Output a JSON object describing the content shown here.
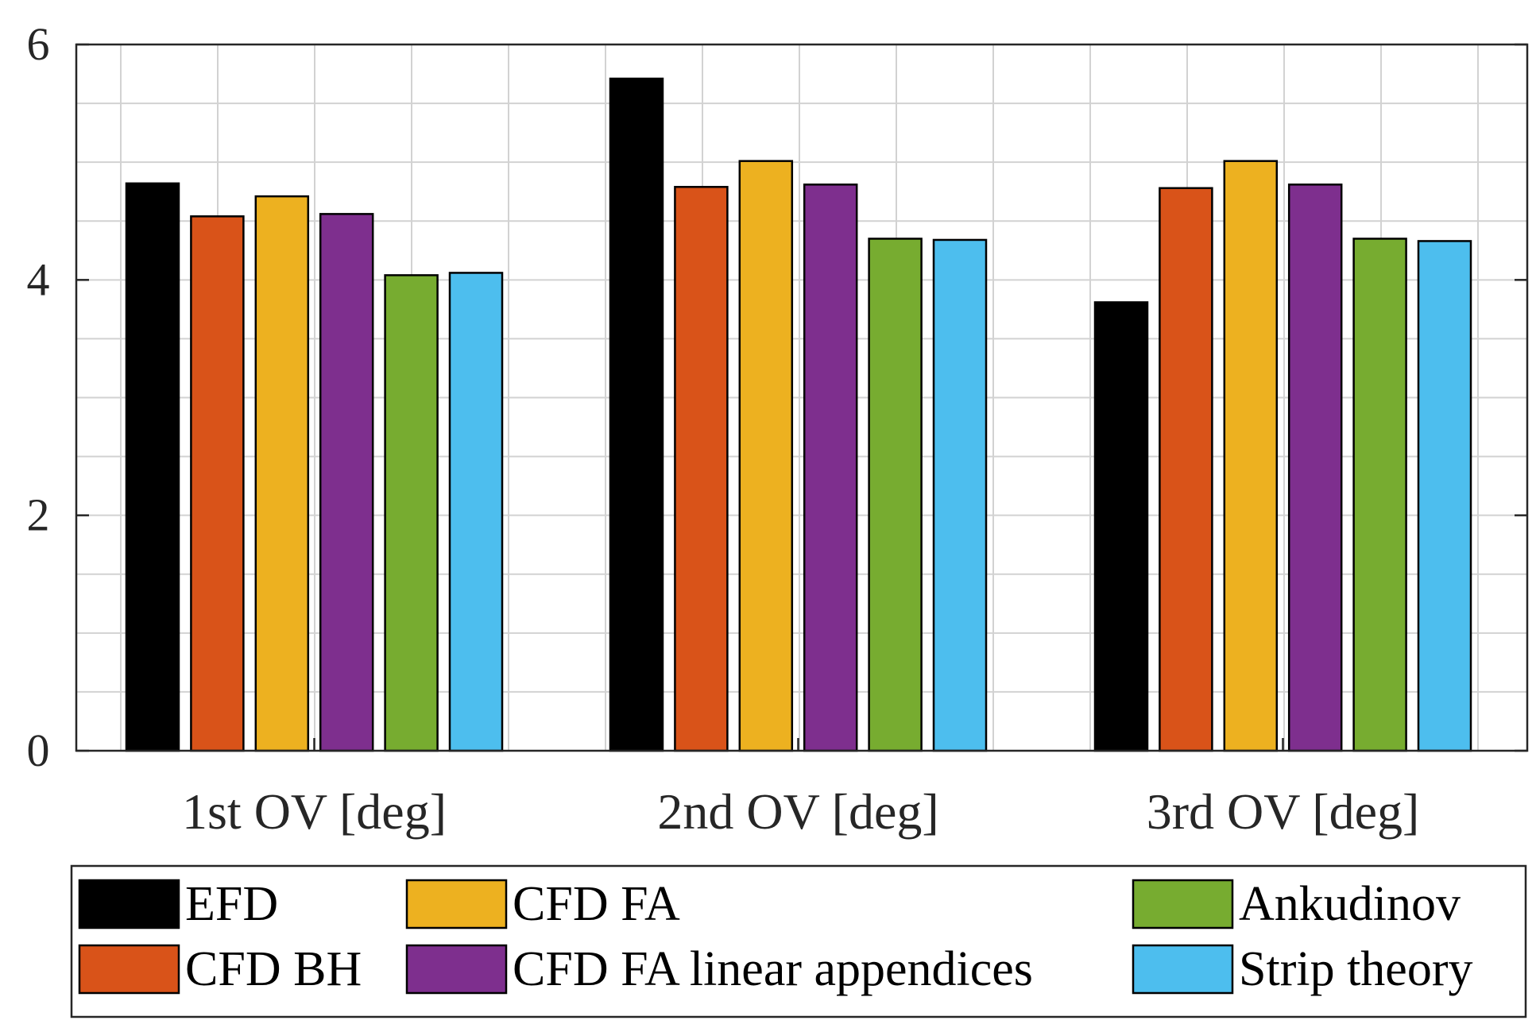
{
  "chart_data": {
    "type": "bar",
    "title": "",
    "xlabel": "",
    "ylabel": "",
    "ylim": [
      0,
      6
    ],
    "yticks": [
      0,
      2,
      4,
      6
    ],
    "grid": true,
    "legend_position": "bottom",
    "categories": [
      "1st OV [deg]",
      "2nd OV [deg]",
      "3rd OV [deg]"
    ],
    "series": [
      {
        "name": "EFD",
        "color": "#000000",
        "values": [
          4.82,
          5.71,
          3.81
        ]
      },
      {
        "name": "CFD BH",
        "color": "#D95319",
        "values": [
          4.54,
          4.79,
          4.78
        ]
      },
      {
        "name": "CFD FA",
        "color": "#EDB120",
        "values": [
          4.71,
          5.01,
          5.01
        ]
      },
      {
        "name": "CFD FA linear appendices",
        "color": "#7E2F8E",
        "values": [
          4.56,
          4.81,
          4.81
        ]
      },
      {
        "name": "Ankudinov",
        "color": "#77AC30",
        "values": [
          4.04,
          4.35,
          4.35
        ]
      },
      {
        "name": "Strip theory",
        "color": "#4DBEEE",
        "values": [
          4.06,
          4.34,
          4.33
        ]
      }
    ]
  }
}
